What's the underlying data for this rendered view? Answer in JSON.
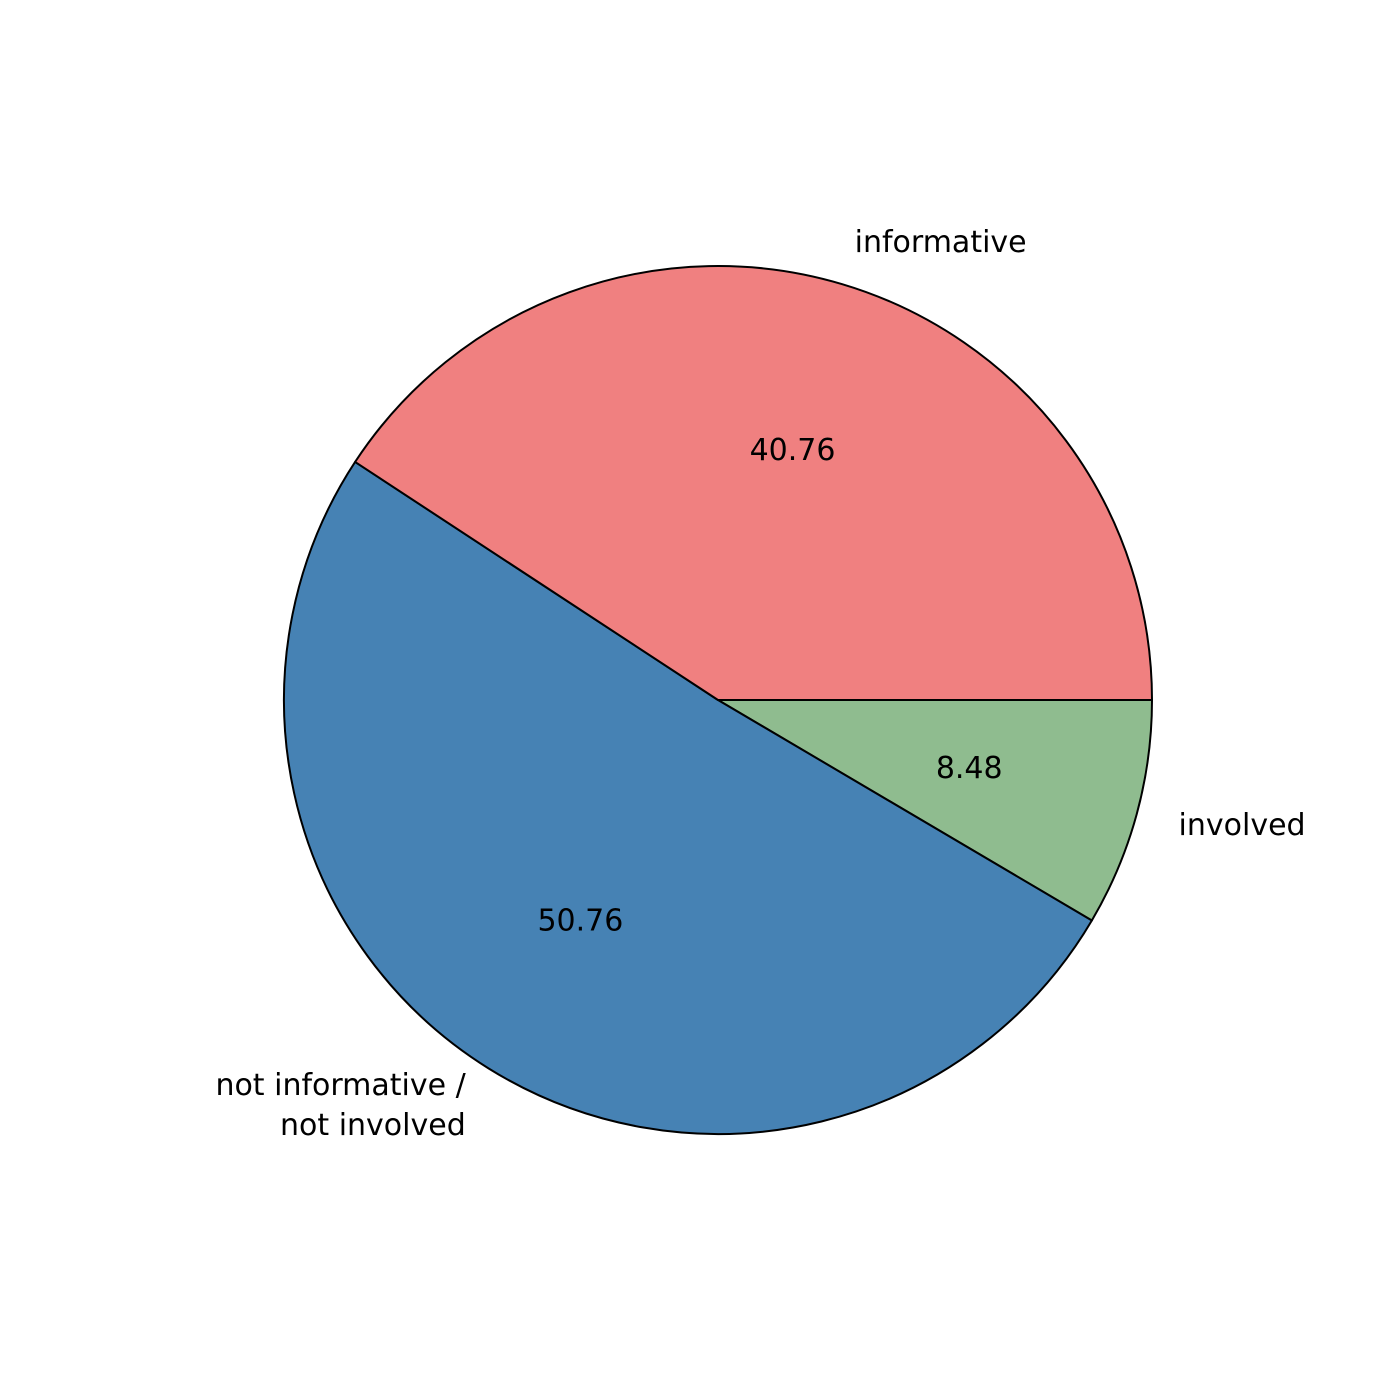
{
  "chart_data": {
    "type": "pie",
    "slices": [
      {
        "label": "involved",
        "label_lines": [
          "involved"
        ],
        "value": 8.48,
        "value_label": "8.48",
        "color": "#8fbc8f"
      },
      {
        "label": "not informative / not involved",
        "label_lines": [
          "not informative /",
          "not involved"
        ],
        "value": 50.76,
        "value_label": "50.76",
        "color": "#4682b4"
      },
      {
        "label": "informative",
        "label_lines": [
          "informative"
        ],
        "value": 40.76,
        "value_label": "40.76",
        "color": "#f08080"
      }
    ],
    "start_angle_deg": 0,
    "direction": "clockwise",
    "edge_color": "#000000"
  }
}
